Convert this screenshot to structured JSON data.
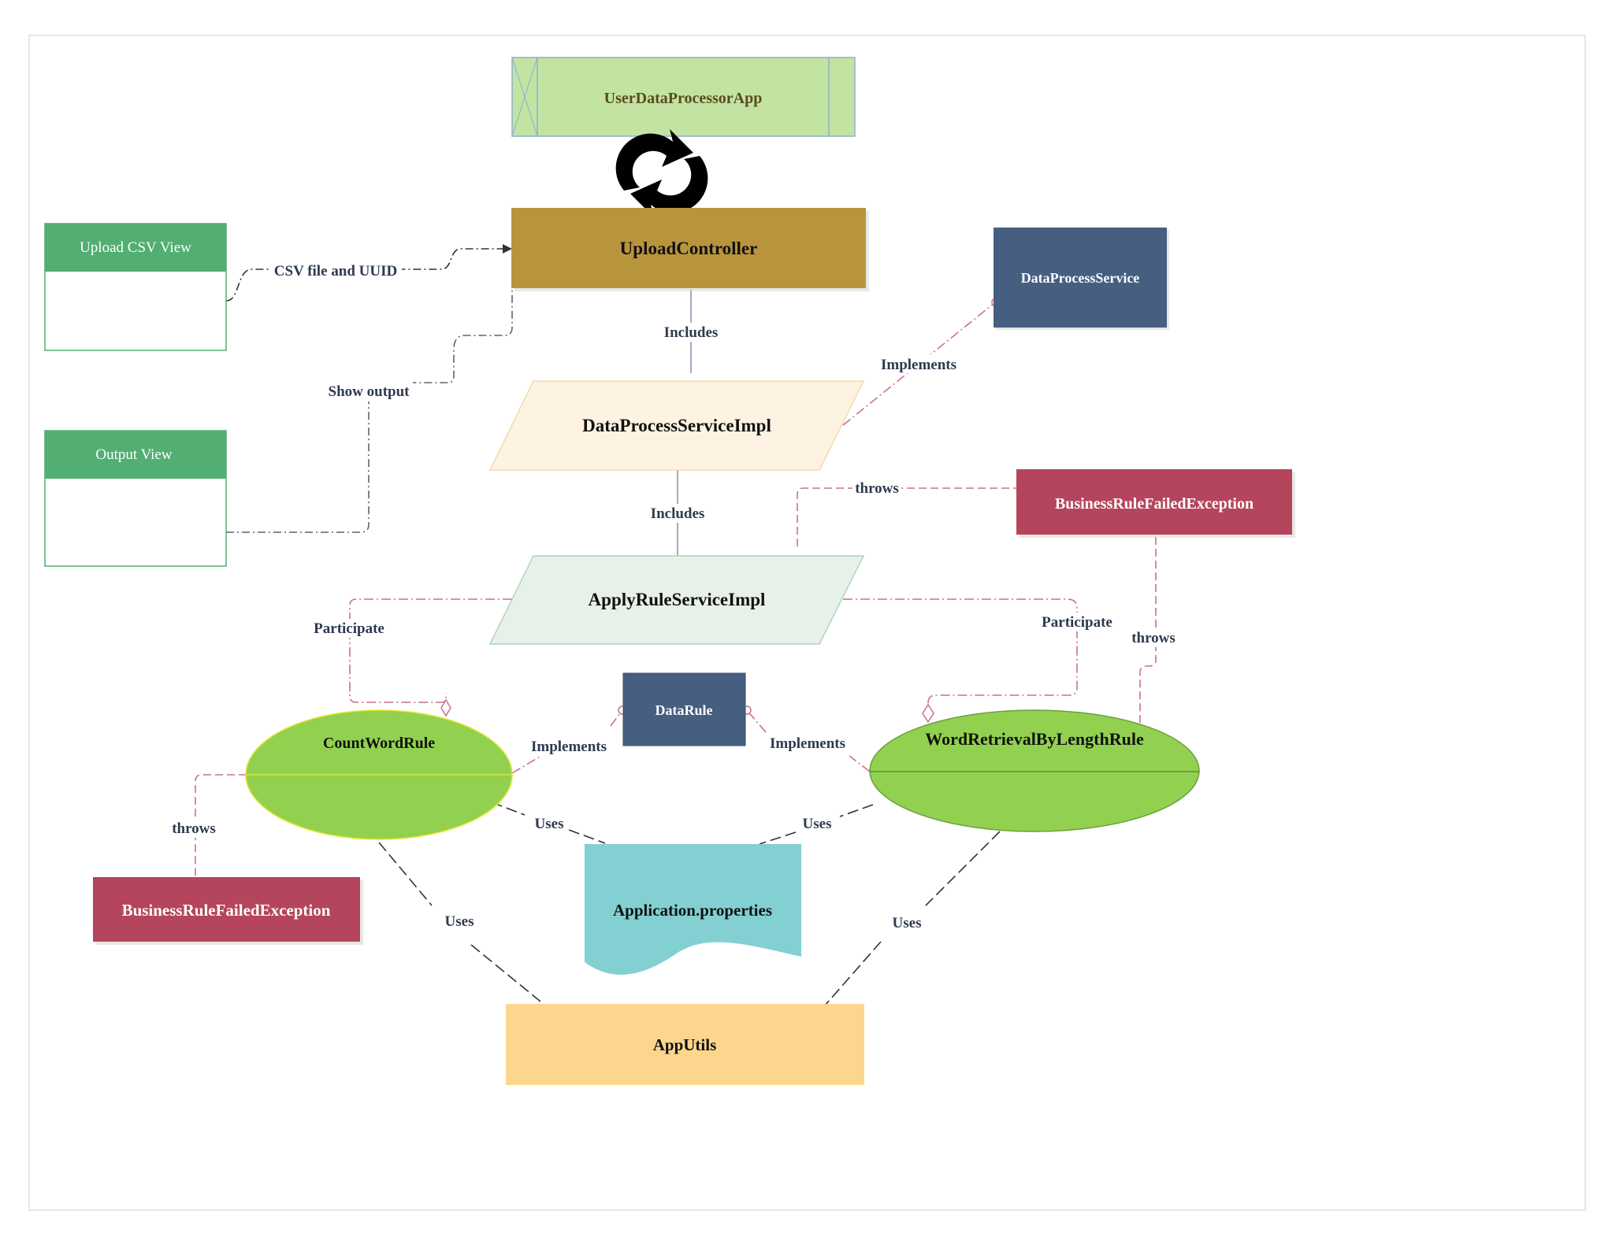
{
  "nodes": {
    "app": {
      "label": "UserDataProcessorApp",
      "fill": "#c3e3a2",
      "stroke": "#8db0cf"
    },
    "upload_controller": {
      "label": "UploadController",
      "fill": "#b8943c"
    },
    "data_process_service": {
      "label": "DataProcessService",
      "fill": "#465f80"
    },
    "data_process_service_impl": {
      "label": "DataProcessServiceImpl",
      "fill": "#fef3e2",
      "stroke": "#f5d9a8"
    },
    "apply_rule_service_impl": {
      "label": "ApplyRuleServiceImpl",
      "fill": "#e7f1ea",
      "stroke": "#aed6b9"
    },
    "business_rule_exception_right": {
      "label": "BusinessRuleFailedException",
      "fill": "#b5455c"
    },
    "business_rule_exception_left": {
      "label": "BusinessRuleFailedException",
      "fill": "#b5455c"
    },
    "data_rule": {
      "label": "DataRule",
      "fill": "#465f80"
    },
    "count_word_rule": {
      "label": "CountWordRule",
      "fill": "#92d150",
      "stroke": "#e3e82a"
    },
    "word_retrieval_rule": {
      "label": "WordRetrievalByLengthRule",
      "fill": "#92d150",
      "stroke": "#6e9f3b"
    },
    "application_properties": {
      "label": "Application.properties",
      "fill": "#82d0d2"
    },
    "app_utils": {
      "label": "AppUtils",
      "fill": "#fdd68e"
    },
    "upload_csv_view": {
      "label": "Upload CSV View",
      "fill": "#52ae72"
    },
    "output_view": {
      "label": "Output View",
      "fill": "#52ae72"
    }
  },
  "edges": {
    "csv_file": "CSV file and UUID",
    "show_output": "Show output",
    "includes_1": "Includes",
    "includes_2": "Includes",
    "implements_service": "Implements",
    "throws_top": "throws",
    "throws_right": "throws",
    "throws_left": "throws",
    "participate_left": "Participate",
    "participate_right": "Participate",
    "implements_left": "Implements",
    "implements_right": "Implements",
    "uses_props_left": "Uses",
    "uses_props_right": "Uses",
    "uses_utils_left": "Uses",
    "uses_utils_right": "Uses"
  },
  "colors": {
    "dashed_pink": "#c9708f",
    "dashed_gray": "#5b6475",
    "dashed_black": "#333333",
    "solid_gray": "#8a96ab",
    "frame": "#e6e6e6"
  },
  "icons": {
    "refresh": "refresh-icon"
  }
}
